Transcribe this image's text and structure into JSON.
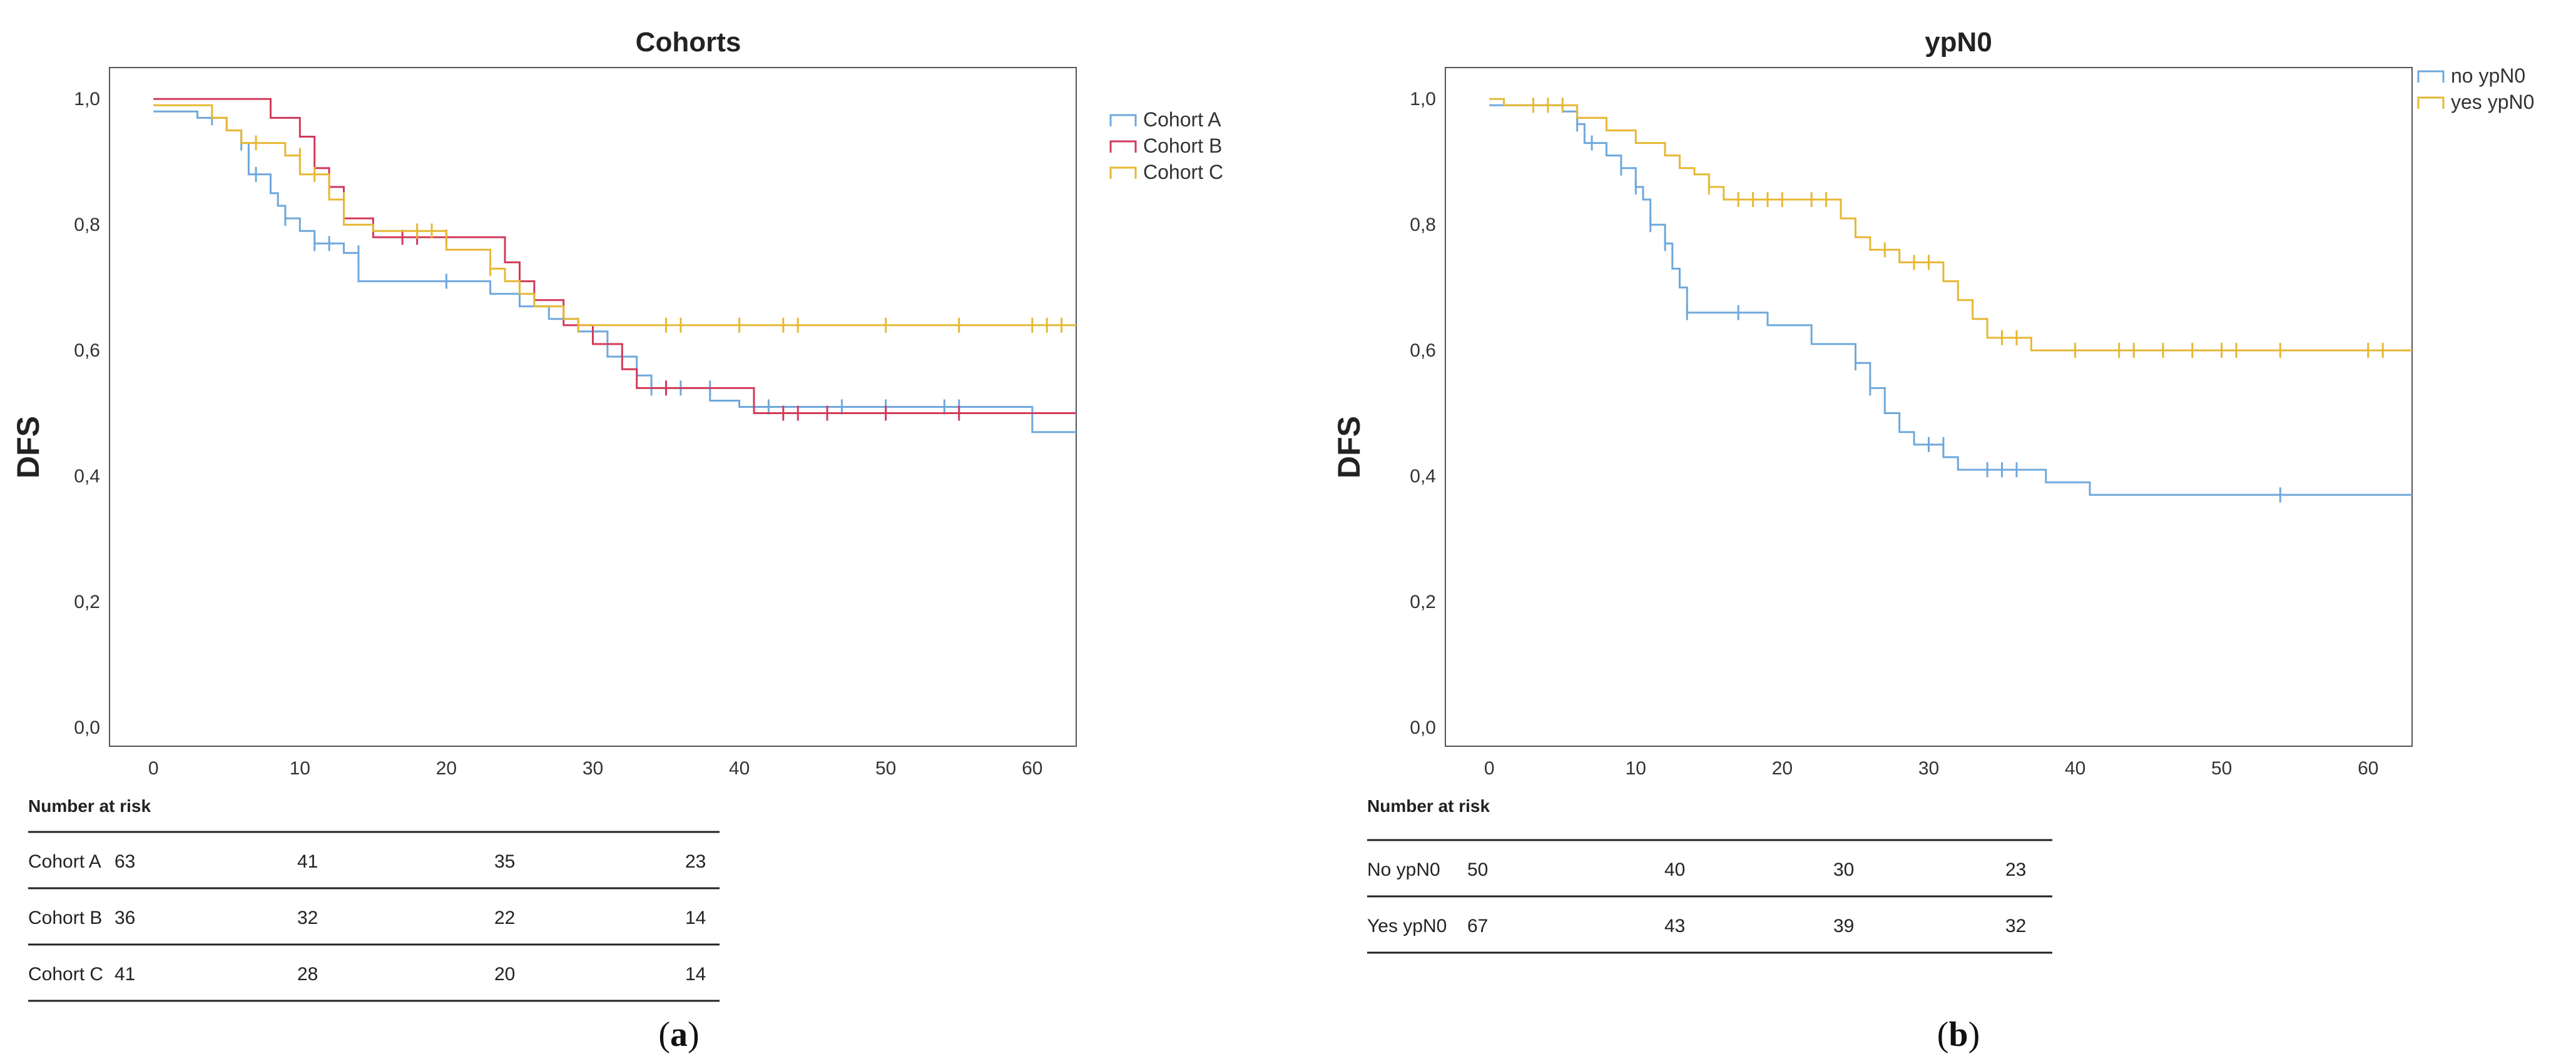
{
  "panels": [
    {
      "caption_label": "a",
      "chart_data": {
        "type": "line",
        "subtype": "kaplan-meier step",
        "title": "Cohorts",
        "xlabel": "",
        "ylabel": "DFS",
        "xlim": [
          -3,
          63
        ],
        "ylim": [
          -0.03,
          1.05
        ],
        "x_ticks": [
          0,
          10,
          20,
          30,
          40,
          50,
          60
        ],
        "y_ticks": [
          0.0,
          0.2,
          0.4,
          0.6,
          0.8,
          1.0
        ],
        "y_tick_labels": [
          "0,0",
          "0,2",
          "0,4",
          "0,6",
          "0,8",
          "1,0"
        ],
        "legend_position": "top-right",
        "grid": false,
        "series": [
          {
            "name": "Cohort A",
            "color": "#6fa8dc",
            "steps": [
              [
                0,
                0.98
              ],
              [
                3,
                0.97
              ],
              [
                5,
                0.95
              ],
              [
                6,
                0.93
              ],
              [
                6.5,
                0.88
              ],
              [
                8,
                0.85
              ],
              [
                8.5,
                0.83
              ],
              [
                9,
                0.81
              ],
              [
                10,
                0.79
              ],
              [
                11,
                0.77
              ],
              [
                13,
                0.755
              ],
              [
                14,
                0.71
              ],
              [
                23,
                0.69
              ],
              [
                25,
                0.67
              ],
              [
                27,
                0.65
              ],
              [
                29,
                0.63
              ],
              [
                31,
                0.59
              ],
              [
                33,
                0.56
              ],
              [
                34,
                0.54
              ],
              [
                38,
                0.52
              ],
              [
                40,
                0.51
              ],
              [
                60,
                0.47
              ],
              [
                63,
                0.47
              ]
            ],
            "censors": [
              [
                4,
                0.97
              ],
              [
                6,
                0.93
              ],
              [
                7,
                0.88
              ],
              [
                9,
                0.81
              ],
              [
                11,
                0.77
              ],
              [
                12,
                0.77
              ],
              [
                14,
                0.755
              ],
              [
                20,
                0.71
              ],
              [
                34,
                0.54
              ],
              [
                36,
                0.54
              ],
              [
                38,
                0.54
              ],
              [
                42,
                0.51
              ],
              [
                47,
                0.51
              ],
              [
                50,
                0.51
              ],
              [
                54,
                0.51
              ],
              [
                55,
                0.51
              ]
            ]
          },
          {
            "name": "Cohort B",
            "color": "#d23a5a",
            "steps": [
              [
                0,
                1.0
              ],
              [
                8,
                0.97
              ],
              [
                10,
                0.94
              ],
              [
                11,
                0.89
              ],
              [
                12,
                0.86
              ],
              [
                13,
                0.81
              ],
              [
                15,
                0.78
              ],
              [
                24,
                0.74
              ],
              [
                25,
                0.71
              ],
              [
                26,
                0.68
              ],
              [
                28,
                0.64
              ],
              [
                30,
                0.61
              ],
              [
                32,
                0.57
              ],
              [
                33,
                0.54
              ],
              [
                36,
                0.54
              ],
              [
                41,
                0.5
              ],
              [
                63,
                0.5
              ]
            ],
            "censors": [
              [
                17,
                0.78
              ],
              [
                18,
                0.78
              ],
              [
                20,
                0.78
              ],
              [
                25,
                0.71
              ],
              [
                35,
                0.54
              ],
              [
                43,
                0.5
              ],
              [
                44,
                0.5
              ],
              [
                46,
                0.5
              ],
              [
                50,
                0.5
              ],
              [
                55,
                0.5
              ]
            ]
          },
          {
            "name": "Cohort C",
            "color": "#e6b833",
            "steps": [
              [
                0,
                0.99
              ],
              [
                4,
                0.97
              ],
              [
                5,
                0.95
              ],
              [
                6,
                0.93
              ],
              [
                9,
                0.91
              ],
              [
                10,
                0.88
              ],
              [
                12,
                0.84
              ],
              [
                13,
                0.8
              ],
              [
                15,
                0.79
              ],
              [
                20,
                0.76
              ],
              [
                23,
                0.73
              ],
              [
                24,
                0.71
              ],
              [
                25,
                0.69
              ],
              [
                26,
                0.67
              ],
              [
                28,
                0.65
              ],
              [
                29,
                0.64
              ],
              [
                63,
                0.64
              ]
            ],
            "censors": [
              [
                7,
                0.93
              ],
              [
                10,
                0.91
              ],
              [
                11,
                0.88
              ],
              [
                13,
                0.84
              ],
              [
                18,
                0.79
              ],
              [
                19,
                0.79
              ],
              [
                23,
                0.73
              ],
              [
                29,
                0.64
              ],
              [
                35,
                0.64
              ],
              [
                36,
                0.64
              ],
              [
                40,
                0.64
              ],
              [
                43,
                0.64
              ],
              [
                44,
                0.64
              ],
              [
                50,
                0.64
              ],
              [
                55,
                0.64
              ],
              [
                60,
                0.64
              ],
              [
                61,
                0.64
              ],
              [
                62,
                0.64
              ]
            ]
          }
        ]
      },
      "risk_table": {
        "title": "Number at risk",
        "rows": [
          {
            "label": "Cohort A",
            "values": [
              "63",
              "41",
              "35",
              "23"
            ]
          },
          {
            "label": "Cohort B",
            "values": [
              "36",
              "32",
              "22",
              "14"
            ]
          },
          {
            "label": "Cohort C",
            "values": [
              "41",
              "28",
              "20",
              "14"
            ]
          }
        ]
      }
    },
    {
      "caption_label": "b",
      "chart_data": {
        "type": "line",
        "subtype": "kaplan-meier step",
        "title": "ypN0",
        "xlabel": "",
        "ylabel": "DFS",
        "xlim": [
          -3,
          63
        ],
        "ylim": [
          -0.03,
          1.05
        ],
        "x_ticks": [
          0,
          10,
          20,
          30,
          40,
          50,
          60
        ],
        "y_ticks": [
          0.0,
          0.2,
          0.4,
          0.6,
          0.8,
          1.0
        ],
        "y_tick_labels": [
          "0,0",
          "0,2",
          "0,4",
          "0,6",
          "0,8",
          "1,0"
        ],
        "legend_position": "top-right",
        "grid": false,
        "series": [
          {
            "name": "no ypN0",
            "color": "#6fa8dc",
            "steps": [
              [
                0,
                0.99
              ],
              [
                5,
                0.98
              ],
              [
                6,
                0.96
              ],
              [
                6.5,
                0.93
              ],
              [
                8,
                0.91
              ],
              [
                9,
                0.89
              ],
              [
                10,
                0.86
              ],
              [
                10.5,
                0.84
              ],
              [
                11,
                0.8
              ],
              [
                12,
                0.77
              ],
              [
                12.5,
                0.73
              ],
              [
                13,
                0.7
              ],
              [
                13.5,
                0.66
              ],
              [
                17,
                0.66
              ],
              [
                19,
                0.64
              ],
              [
                22,
                0.61
              ],
              [
                25,
                0.58
              ],
              [
                26,
                0.54
              ],
              [
                27,
                0.5
              ],
              [
                28,
                0.47
              ],
              [
                29,
                0.45
              ],
              [
                31,
                0.43
              ],
              [
                32,
                0.41
              ],
              [
                36,
                0.41
              ],
              [
                38,
                0.39
              ],
              [
                41,
                0.37
              ],
              [
                63,
                0.37
              ]
            ],
            "censors": [
              [
                6,
                0.96
              ],
              [
                7,
                0.93
              ],
              [
                9,
                0.89
              ],
              [
                10,
                0.86
              ],
              [
                11,
                0.8
              ],
              [
                12,
                0.77
              ],
              [
                13.5,
                0.66
              ],
              [
                17,
                0.66
              ],
              [
                25,
                0.58
              ],
              [
                26,
                0.54
              ],
              [
                30,
                0.45
              ],
              [
                31,
                0.45
              ],
              [
                34,
                0.41
              ],
              [
                35,
                0.41
              ],
              [
                36,
                0.41
              ],
              [
                54,
                0.37
              ]
            ]
          },
          {
            "name": "yes ypN0",
            "color": "#e6b833",
            "steps": [
              [
                0,
                1.0
              ],
              [
                1,
                0.99
              ],
              [
                6,
                0.97
              ],
              [
                8,
                0.95
              ],
              [
                10,
                0.93
              ],
              [
                12,
                0.91
              ],
              [
                13,
                0.89
              ],
              [
                14,
                0.88
              ],
              [
                15,
                0.86
              ],
              [
                16,
                0.84
              ],
              [
                23,
                0.84
              ],
              [
                24,
                0.81
              ],
              [
                25,
                0.78
              ],
              [
                26,
                0.76
              ],
              [
                28,
                0.74
              ],
              [
                31,
                0.71
              ],
              [
                32,
                0.68
              ],
              [
                33,
                0.65
              ],
              [
                34,
                0.62
              ],
              [
                37,
                0.6
              ],
              [
                38,
                0.6
              ],
              [
                63,
                0.6
              ]
            ],
            "censors": [
              [
                3,
                0.99
              ],
              [
                4,
                0.99
              ],
              [
                5,
                0.99
              ],
              [
                15,
                0.86
              ],
              [
                17,
                0.84
              ],
              [
                18,
                0.84
              ],
              [
                19,
                0.84
              ],
              [
                20,
                0.84
              ],
              [
                22,
                0.84
              ],
              [
                23,
                0.84
              ],
              [
                27,
                0.76
              ],
              [
                29,
                0.74
              ],
              [
                30,
                0.74
              ],
              [
                35,
                0.62
              ],
              [
                36,
                0.62
              ],
              [
                40,
                0.6
              ],
              [
                43,
                0.6
              ],
              [
                44,
                0.6
              ],
              [
                46,
                0.6
              ],
              [
                48,
                0.6
              ],
              [
                50,
                0.6
              ],
              [
                51,
                0.6
              ],
              [
                54,
                0.6
              ],
              [
                60,
                0.6
              ],
              [
                61,
                0.6
              ]
            ]
          }
        ]
      },
      "risk_table": {
        "title": "Number at risk",
        "rows": [
          {
            "label": "No ypN0",
            "values": [
              "50",
              "40",
              "30",
              "23"
            ]
          },
          {
            "label": "Yes ypN0",
            "values": [
              "67",
              "43",
              "39",
              "32"
            ]
          }
        ]
      }
    }
  ]
}
